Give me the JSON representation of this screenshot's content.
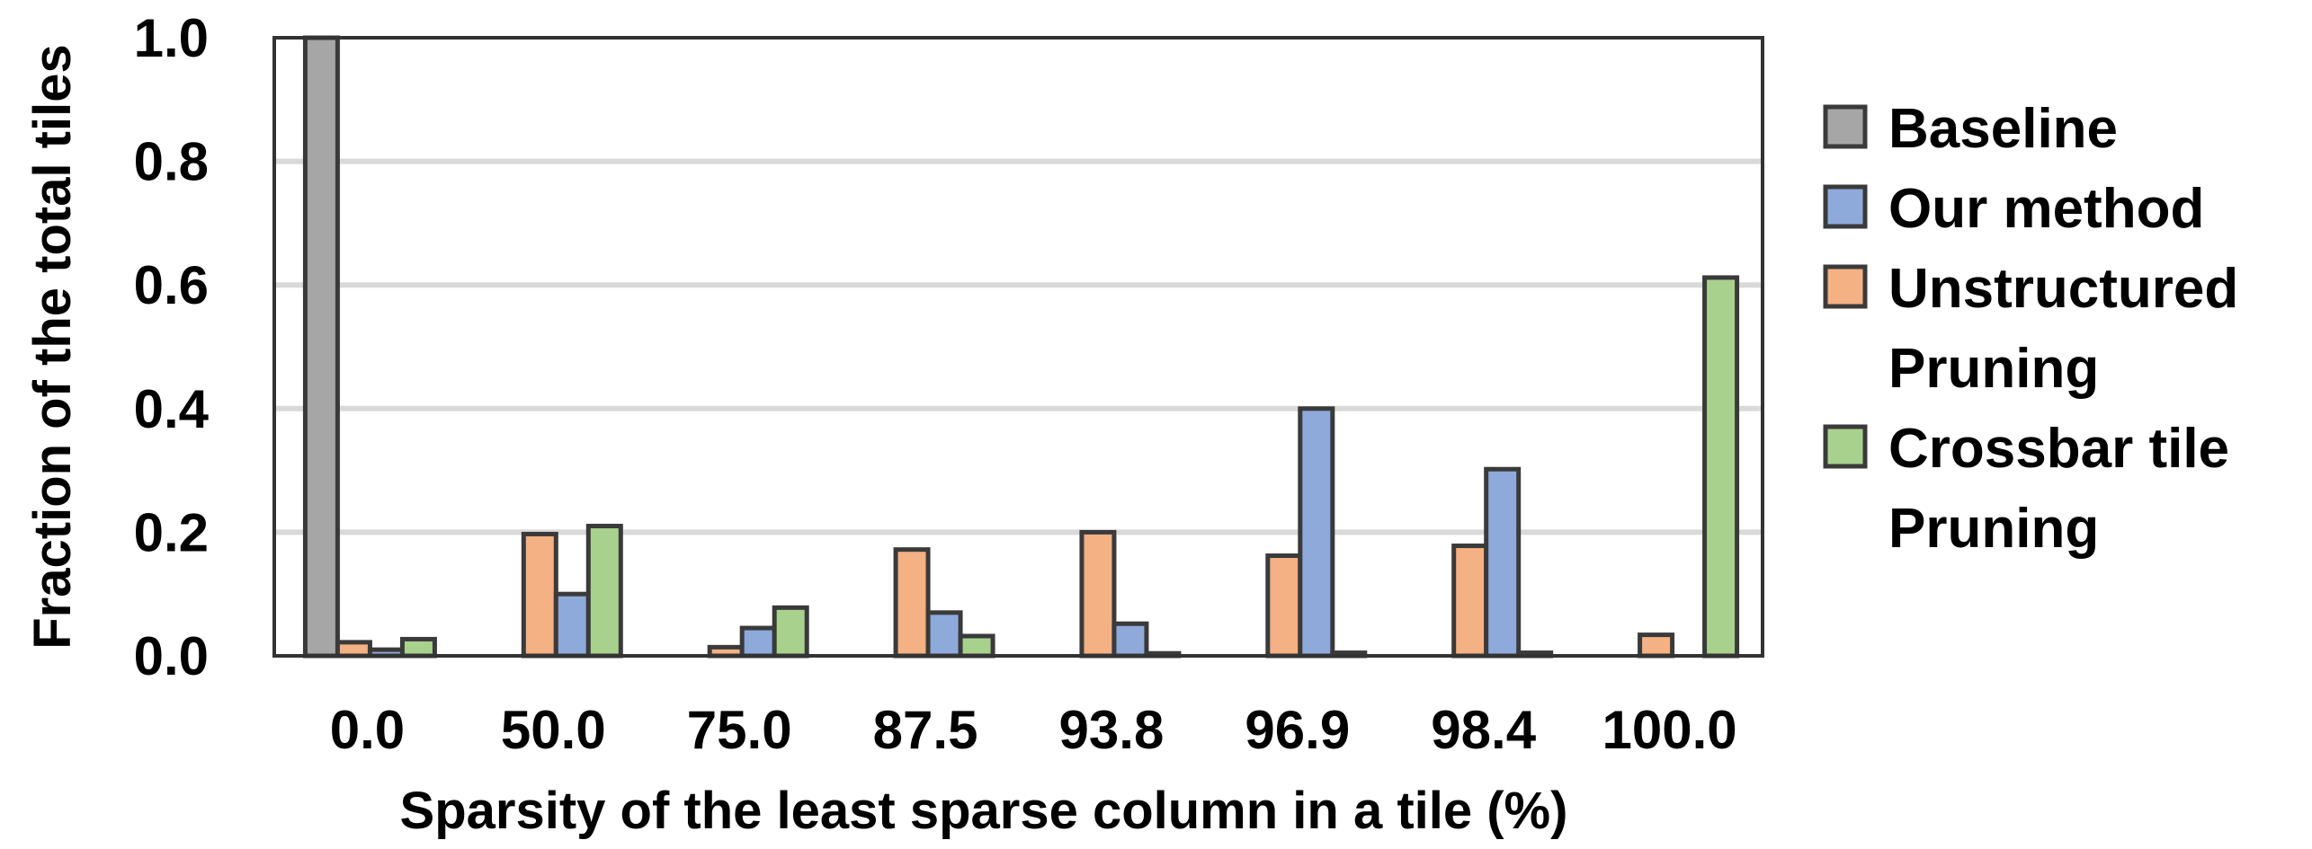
{
  "chart_data": {
    "type": "bar",
    "title": "",
    "xlabel": "Sparsity of the least sparse column in a tile (%)",
    "ylabel": "Fraction of the total tiles",
    "ylim": [
      0,
      1
    ],
    "yticks": [
      "0.0",
      "0.2",
      "0.4",
      "0.6",
      "0.8",
      "1.0"
    ],
    "grid": "horizontal",
    "legend_position": "right",
    "categories": [
      "0.0",
      "50.0",
      "75.0",
      "87.5",
      "93.8",
      "96.9",
      "98.4",
      "100.0"
    ],
    "series": [
      {
        "name": "Baseline",
        "color": "#a6a6a6",
        "values": [
          1.0,
          0,
          0,
          0,
          0,
          0,
          0,
          0
        ]
      },
      {
        "name": "Unstructured Pruning",
        "color": "#f4b183",
        "values": [
          0.022,
          0.197,
          0.014,
          0.172,
          0.2,
          0.162,
          0.178,
          0.034
        ]
      },
      {
        "name": "Our method",
        "color": "#8eaadb",
        "values": [
          0.01,
          0.1,
          0.045,
          0.07,
          0.052,
          0.4,
          0.302,
          0.0
        ]
      },
      {
        "name": "Crossbar tile Pruning",
        "color": "#a9d18e",
        "values": [
          0.027,
          0.21,
          0.078,
          0.032,
          0.004,
          0.005,
          0.005,
          0.612
        ]
      }
    ],
    "legend": [
      {
        "label_lines": [
          "Baseline"
        ],
        "color": "#a6a6a6"
      },
      {
        "label_lines": [
          "Our method"
        ],
        "color": "#8eaadb"
      },
      {
        "label_lines": [
          "Unstructured",
          "Pruning"
        ],
        "color": "#f4b183"
      },
      {
        "label_lines": [
          "Crossbar tile",
          "Pruning"
        ],
        "color": "#a9d18e"
      }
    ]
  }
}
